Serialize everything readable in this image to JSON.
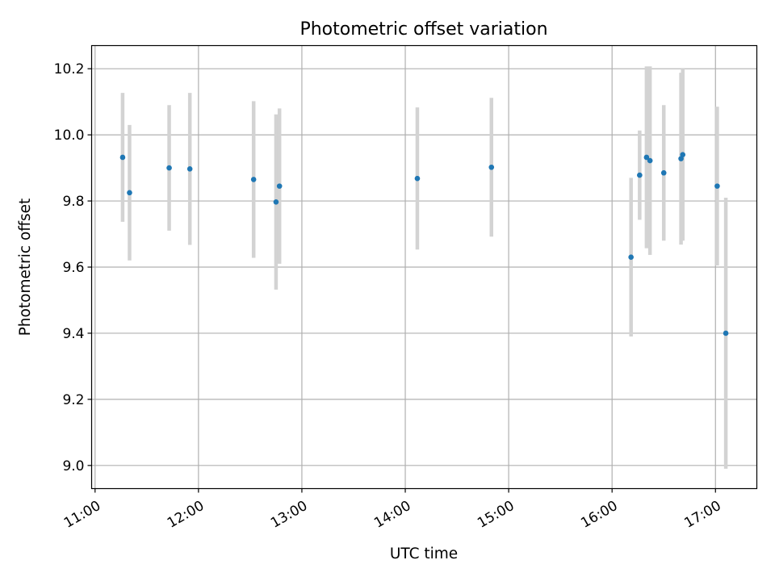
{
  "chart_data": {
    "type": "scatter",
    "title": "Photometric offset variation",
    "xlabel": "UTC time",
    "ylabel": "Photometric offset",
    "x_tick_labels": [
      "11:00",
      "12:00",
      "13:00",
      "14:00",
      "15:00",
      "16:00",
      "17:00"
    ],
    "x_tick_times": [
      "11:00",
      "12:00",
      "13:00",
      "14:00",
      "15:00",
      "16:00",
      "17:00"
    ],
    "xlim": [
      "10:58",
      "17:24"
    ],
    "y_ticks": [
      9.0,
      9.2,
      9.4,
      9.6,
      9.8,
      10.0,
      10.2
    ],
    "y_tick_labels": [
      "9.0",
      "9.2",
      "9.4",
      "9.6",
      "9.8",
      "10.0",
      "10.2"
    ],
    "ylim": [
      8.93,
      10.27
    ],
    "grid": true,
    "colors": {
      "points": "#1f77b4",
      "errorbars": "#d3d3d3",
      "grid": "#b0b0b0",
      "axes": "#000000"
    },
    "points": [
      {
        "time": "11:16",
        "value": 9.932,
        "err": 0.195
      },
      {
        "time": "11:20",
        "value": 9.825,
        "err": 0.205
      },
      {
        "time": "11:43",
        "value": 9.9,
        "err": 0.19
      },
      {
        "time": "11:55",
        "value": 9.897,
        "err": 0.23
      },
      {
        "time": "12:32",
        "value": 9.865,
        "err": 0.237
      },
      {
        "time": "12:45",
        "value": 9.797,
        "err": 0.265
      },
      {
        "time": "12:47",
        "value": 9.845,
        "err": 0.235
      },
      {
        "time": "14:07",
        "value": 9.868,
        "err": 0.215
      },
      {
        "time": "14:50",
        "value": 9.902,
        "err": 0.21
      },
      {
        "time": "16:11",
        "value": 9.63,
        "err": 0.24
      },
      {
        "time": "16:16",
        "value": 9.878,
        "err": 0.135
      },
      {
        "time": "16:20",
        "value": 9.932,
        "err": 0.275
      },
      {
        "time": "16:22",
        "value": 9.922,
        "err": 0.285
      },
      {
        "time": "16:30",
        "value": 9.885,
        "err": 0.205
      },
      {
        "time": "16:40",
        "value": 9.928,
        "err": 0.26
      },
      {
        "time": "16:41",
        "value": 9.94,
        "err": 0.26
      },
      {
        "time": "17:01",
        "value": 9.845,
        "err": 0.24
      },
      {
        "time": "17:06",
        "value": 9.4,
        "err": 0.41
      }
    ]
  }
}
